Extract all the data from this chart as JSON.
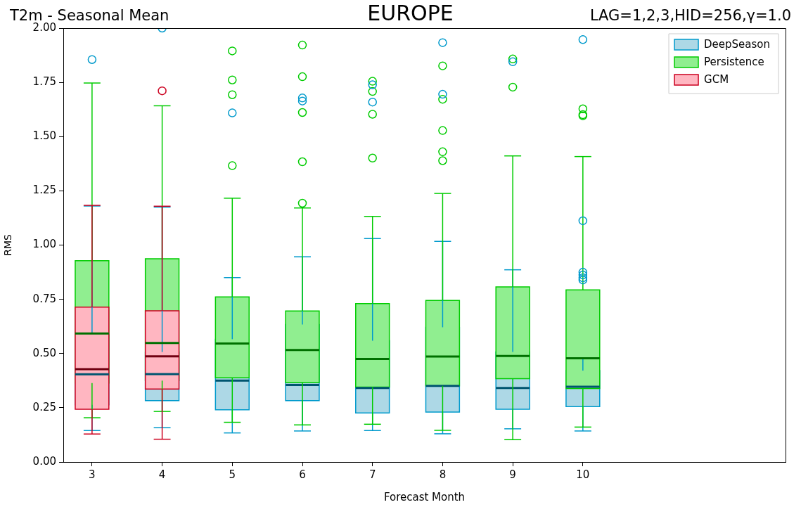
{
  "chart_data": {
    "type": "box",
    "title": "EUROPE",
    "annotations": [
      "T2m - Seasonal Mean",
      "LAG=1,2,3,HID=256,γ=1.0"
    ],
    "xlabel": "Forecast Month",
    "ylabel": "RMS",
    "x": [
      3,
      4,
      5,
      6,
      7,
      8,
      9,
      10
    ],
    "xlim": [
      2.59,
      12.89
    ],
    "xticks": [
      3,
      4,
      5,
      6,
      7,
      8,
      9,
      10
    ],
    "ylim": [
      0,
      2
    ],
    "yticks": [
      {
        "value": 0,
        "label": "0.00"
      },
      0.25,
      {
        "value": 0.5,
        "label": "0.50"
      },
      0.75,
      {
        "value": 1,
        "label": "1.00"
      },
      1.25,
      {
        "value": 1.5,
        "label": "1.50"
      },
      1.75,
      {
        "value": 2,
        "label": "2.00"
      }
    ],
    "grid": false,
    "legend": "top right",
    "marker": "circle",
    "series": [
      {
        "name": "DeepSeason",
        "color": "#add8e6",
        "boxes": [
          {
            "low": 0.145,
            "q1": 0.263,
            "median": 0.404,
            "q3": 0.59,
            "high": 1.18,
            "outliers": [
              1.855
            ]
          },
          {
            "low": 0.158,
            "q1": 0.283,
            "median": 0.405,
            "q3": 0.507,
            "high": 1.175,
            "outliers": [
              2.0
            ]
          },
          {
            "low": 0.134,
            "q1": 0.241,
            "median": 0.375,
            "q3": 0.566,
            "high": 0.85,
            "outliers": [
              1.609
            ]
          },
          {
            "low": 0.143,
            "q1": 0.283,
            "median": 0.355,
            "q3": 0.634,
            "high": 0.946,
            "outliers": [
              1.678,
              1.664
            ]
          },
          {
            "low": 0.145,
            "q1": 0.226,
            "median": 0.341,
            "q3": 0.559,
            "high": 1.03,
            "outliers": [
              1.739,
              1.659
            ]
          },
          {
            "low": 0.13,
            "q1": 0.23,
            "median": 0.351,
            "q3": 0.621,
            "high": 1.017,
            "outliers": [
              1.933,
              1.695
            ]
          },
          {
            "low": 0.153,
            "q1": 0.243,
            "median": 0.341,
            "q3": 0.507,
            "high": 0.886,
            "outliers": [
              1.845
            ]
          },
          {
            "low": 0.143,
            "q1": 0.255,
            "median": 0.347,
            "q3": 0.421,
            "high": 0.478,
            "outliers": [
              1.947,
              1.112,
              0.875,
              0.862,
              0.849,
              0.839
            ]
          }
        ]
      },
      {
        "name": "Persistence",
        "color": "#90ee90",
        "boxes": [
          {
            "low": 0.204,
            "q1": 0.364,
            "median": 0.592,
            "q3": 0.928,
            "high": 1.747
          },
          {
            "low": 0.233,
            "q1": 0.375,
            "median": 0.549,
            "q3": 0.937,
            "high": 1.642
          },
          {
            "low": 0.183,
            "q1": 0.388,
            "median": 0.546,
            "q3": 0.761,
            "high": 1.216,
            "outliers": [
              1.895,
              1.761,
              1.693,
              1.366
            ]
          },
          {
            "low": 0.171,
            "q1": 0.366,
            "median": 0.516,
            "q3": 0.696,
            "high": 1.171,
            "outliers": [
              1.922,
              1.776,
              1.611,
              1.384,
              1.193
            ]
          },
          {
            "low": 0.174,
            "q1": 0.345,
            "median": 0.475,
            "q3": 0.73,
            "high": 1.132,
            "outliers": [
              1.755,
              1.708,
              1.603,
              1.401
            ]
          },
          {
            "low": 0.146,
            "q1": 0.351,
            "median": 0.486,
            "q3": 0.745,
            "high": 1.238,
            "outliers": [
              1.826,
              1.672,
              1.528,
              1.43,
              1.389
            ]
          },
          {
            "low": 0.103,
            "q1": 0.384,
            "median": 0.489,
            "q3": 0.807,
            "high": 1.411,
            "outliers": [
              1.858,
              1.728
            ]
          },
          {
            "low": 0.161,
            "q1": 0.339,
            "median": 0.478,
            "q3": 0.793,
            "high": 1.408,
            "outliers": [
              1.628,
              1.601,
              1.596
            ]
          }
        ]
      },
      {
        "name": "GCM",
        "color": "#ffb6c1",
        "boxes": [
          {
            "low": 0.129,
            "q1": 0.243,
            "median": 0.428,
            "q3": 0.714,
            "high": 1.183
          },
          {
            "low": 0.105,
            "q1": 0.336,
            "median": 0.487,
            "q3": 0.697,
            "high": 1.179,
            "outliers": [
              1.711
            ]
          },
          null,
          null,
          null,
          null,
          null,
          null
        ]
      }
    ]
  }
}
